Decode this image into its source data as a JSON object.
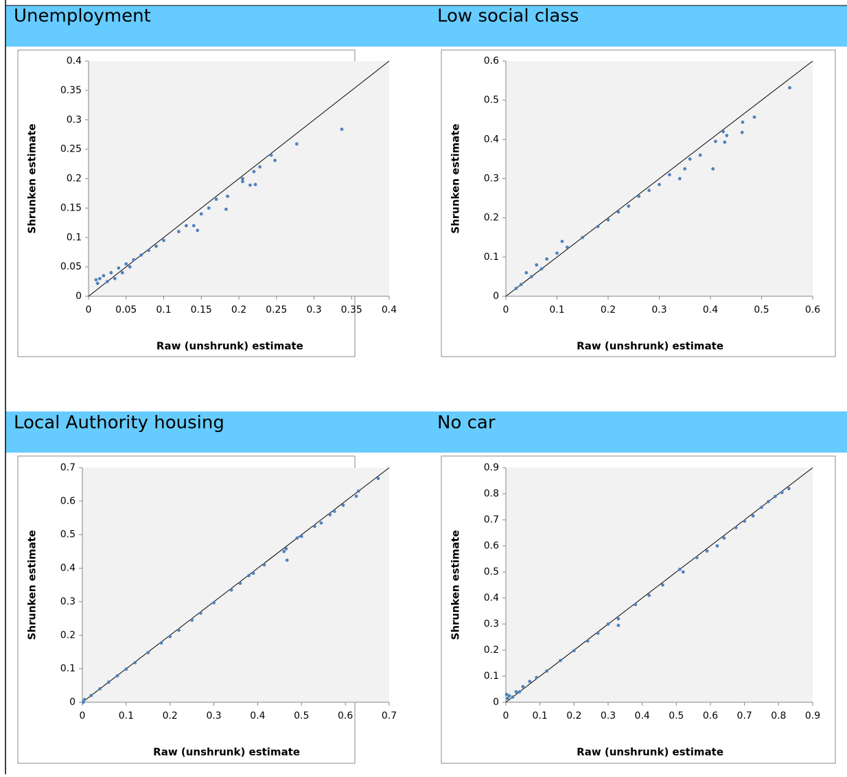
{
  "chart_data": [
    {
      "type": "scatter",
      "title": "Unemployment",
      "xlabel": "Raw (unshrunk) estimate",
      "ylabel": "Shrunken estimate",
      "color": "#4f81bd",
      "diagonal": true,
      "xlim": [
        0,
        0.4
      ],
      "ylim": [
        0,
        0.4
      ],
      "xticks": [
        0,
        0.05,
        0.1,
        0.15,
        0.2,
        0.25,
        0.3,
        0.35,
        0.4
      ],
      "yticks": [
        0,
        0.05,
        0.1,
        0.15,
        0.2,
        0.25,
        0.3,
        0.35,
        0.4
      ],
      "x": [
        0.337,
        0.277,
        0.248,
        0.243,
        0.228,
        0.222,
        0.215,
        0.22,
        0.205,
        0.205,
        0.185,
        0.183,
        0.17,
        0.16,
        0.15,
        0.145,
        0.14,
        0.13,
        0.12,
        0.1,
        0.09,
        0.08,
        0.07,
        0.06,
        0.05,
        0.04,
        0.03,
        0.02,
        0.015,
        0.01,
        0.012,
        0.025,
        0.035,
        0.045,
        0.055
      ],
      "values": [
        0.284,
        0.259,
        0.231,
        0.24,
        0.22,
        0.19,
        0.189,
        0.212,
        0.2,
        0.195,
        0.17,
        0.148,
        0.165,
        0.15,
        0.14,
        0.112,
        0.12,
        0.12,
        0.11,
        0.095,
        0.085,
        0.078,
        0.07,
        0.062,
        0.055,
        0.048,
        0.04,
        0.035,
        0.03,
        0.028,
        0.022,
        0.025,
        0.03,
        0.04,
        0.05
      ]
    },
    {
      "type": "scatter",
      "title": "Low social class",
      "xlabel": "Raw (unshrunk) estimate",
      "ylabel": "Shrunken estimate",
      "color": "#4f81bd",
      "diagonal": true,
      "xlim": [
        0,
        0.6
      ],
      "ylim": [
        0,
        0.6
      ],
      "xticks": [
        0,
        0.1,
        0.2,
        0.3,
        0.4,
        0.5,
        0.6
      ],
      "yticks": [
        0,
        0.1,
        0.2,
        0.3,
        0.4,
        0.5,
        0.6
      ],
      "x": [
        0.555,
        0.486,
        0.463,
        0.462,
        0.432,
        0.428,
        0.425,
        0.41,
        0.405,
        0.38,
        0.36,
        0.35,
        0.34,
        0.32,
        0.3,
        0.28,
        0.26,
        0.24,
        0.22,
        0.2,
        0.18,
        0.15,
        0.12,
        0.1,
        0.08,
        0.06,
        0.04,
        0.07,
        0.05,
        0.03,
        0.02,
        0.11
      ],
      "values": [
        0.532,
        0.457,
        0.444,
        0.418,
        0.41,
        0.393,
        0.42,
        0.395,
        0.325,
        0.36,
        0.35,
        0.325,
        0.3,
        0.31,
        0.285,
        0.27,
        0.255,
        0.23,
        0.215,
        0.195,
        0.178,
        0.15,
        0.125,
        0.11,
        0.095,
        0.08,
        0.06,
        0.07,
        0.05,
        0.03,
        0.02,
        0.14
      ]
    },
    {
      "type": "scatter",
      "title": "Local Authority housing",
      "xlabel": "Raw (unshrunk) estimate",
      "ylabel": "Shrunken estimate",
      "color": "#4f81bd",
      "diagonal": true,
      "xlim": [
        0,
        0.7
      ],
      "ylim": [
        0,
        0.7
      ],
      "xticks": [
        0,
        0.1,
        0.2,
        0.3,
        0.4,
        0.5,
        0.6,
        0.7
      ],
      "yticks": [
        0,
        0.1,
        0.2,
        0.3,
        0.4,
        0.5,
        0.6,
        0.7
      ],
      "x": [
        0.675,
        0.63,
        0.625,
        0.595,
        0.575,
        0.565,
        0.545,
        0.53,
        0.5,
        0.49,
        0.465,
        0.46,
        0.467,
        0.415,
        0.39,
        0.38,
        0.36,
        0.34,
        0.3,
        0.27,
        0.25,
        0.22,
        0.2,
        0.18,
        0.15,
        0.12,
        0.1,
        0.08,
        0.06,
        0.04,
        0.02,
        0.005,
        0.002
      ],
      "values": [
        0.668,
        0.63,
        0.615,
        0.588,
        0.57,
        0.56,
        0.535,
        0.525,
        0.495,
        0.49,
        0.458,
        0.45,
        0.424,
        0.41,
        0.385,
        0.378,
        0.355,
        0.335,
        0.297,
        0.266,
        0.245,
        0.215,
        0.196,
        0.177,
        0.148,
        0.118,
        0.099,
        0.079,
        0.06,
        0.04,
        0.02,
        0.008,
        0
      ]
    },
    {
      "type": "scatter",
      "title": "No car",
      "xlabel": "Raw (unshrunk) estimate",
      "ylabel": "Shrunken estimate",
      "color": "#4f81bd",
      "diagonal": true,
      "xlim": [
        0,
        0.9
      ],
      "ylim": [
        0,
        0.9
      ],
      "xticks": [
        0,
        0.1,
        0.2,
        0.3,
        0.4,
        0.5,
        0.6,
        0.7,
        0.8,
        0.9
      ],
      "yticks": [
        0,
        0.1,
        0.2,
        0.3,
        0.4,
        0.5,
        0.6,
        0.7,
        0.8,
        0.9
      ],
      "x": [
        0.83,
        0.81,
        0.79,
        0.77,
        0.75,
        0.725,
        0.7,
        0.675,
        0.64,
        0.62,
        0.59,
        0.56,
        0.52,
        0.51,
        0.46,
        0.42,
        0.38,
        0.33,
        0.33,
        0.3,
        0.27,
        0.24,
        0.2,
        0.16,
        0.12,
        0.09,
        0.07,
        0.05,
        0.03,
        0.01,
        0.005,
        0.002,
        0.02,
        0.04
      ],
      "values": [
        0.82,
        0.805,
        0.79,
        0.77,
        0.748,
        0.715,
        0.695,
        0.67,
        0.63,
        0.6,
        0.58,
        0.555,
        0.5,
        0.51,
        0.45,
        0.41,
        0.375,
        0.295,
        0.32,
        0.3,
        0.265,
        0.235,
        0.198,
        0.16,
        0.12,
        0.095,
        0.08,
        0.06,
        0.04,
        0.025,
        0.015,
        0.03,
        0.02,
        0.04
      ]
    }
  ]
}
